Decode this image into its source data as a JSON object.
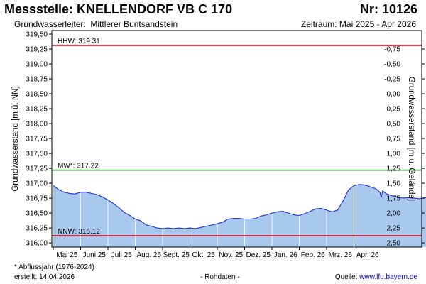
{
  "header": {
    "title": "Messstelle: KNELLENDORF VB C 170",
    "number": "Nr: 10126",
    "aquifer_label": "Grundwasserleiter:",
    "aquifer_value": "Mittlerer Buntsandstein",
    "period": "Zeitraum: Mai 2025 - Apr 2026"
  },
  "footer": {
    "footnote": "* Abflussjahr (1976-2024)",
    "created": "erstellt:  14.04.2026",
    "raw": "- Rohdaten -",
    "source_label": "Quelle:",
    "source_link": "www.lfu.bayern.de"
  },
  "chart_data": {
    "type": "area",
    "ylabel": "Grundwasserstand [m ü. NN]",
    "y2label": "Grundwasserstand [m u. Gelände]",
    "ylim": [
      315.93,
      319.56
    ],
    "y_ticks": [
      316.0,
      316.25,
      316.5,
      316.75,
      317.0,
      317.25,
      317.5,
      317.75,
      318.0,
      318.25,
      318.5,
      318.75,
      319.0,
      319.25,
      319.5
    ],
    "y_tick_labels": [
      "316,00",
      "316,25",
      "316,50",
      "316,75",
      "317,00",
      "317,25",
      "317,50",
      "317,75",
      "318,00",
      "318,25",
      "318,50",
      "318,75",
      "319,00",
      "319,25",
      "319,50"
    ],
    "y2_ticks": [
      -0.75,
      -0.5,
      -0.25,
      0.0,
      0.25,
      0.5,
      0.75,
      1.0,
      1.25,
      1.5,
      1.75,
      2.0,
      2.25,
      2.5
    ],
    "y2_tick_labels": [
      "-0,75",
      "-0,50",
      "-0,25",
      "0,00",
      "0,25",
      "0,50",
      "0,75",
      "1,00",
      "1,25",
      "1,50",
      "1,75",
      "2,00",
      "2,25",
      "2,50"
    ],
    "y2_ref_level": 318.5,
    "x_ticks": [
      "Mai 25",
      "Juni 25",
      "Juli 25",
      "Aug. 25",
      "Sept. 25",
      "Okt. 25",
      "Nov. 25",
      "Dez. 25",
      "Jan. 26",
      "Feb. 26",
      "Mrz. 26",
      "Apr. 26"
    ],
    "grid": true,
    "reference_lines": [
      {
        "label": "HHW: 319.31",
        "value": 319.31,
        "color": "#e00000"
      },
      {
        "label": "MW*: 317.22",
        "value": 317.22,
        "color": "#008000"
      },
      {
        "label": "NNW: 316.12",
        "value": 316.12,
        "color": "#e00000"
      }
    ],
    "series": [
      {
        "color": "#1d2fd0",
        "fill": "#a9c8ee",
        "points": [
          [
            0.0,
            316.96
          ],
          [
            0.1,
            316.93
          ],
          [
            0.2,
            316.89
          ],
          [
            0.3,
            316.87
          ],
          [
            0.4,
            316.85
          ],
          [
            0.5,
            316.84
          ],
          [
            0.6,
            316.83
          ],
          [
            0.8,
            316.82
          ],
          [
            1.0,
            316.85
          ],
          [
            1.2,
            316.85
          ],
          [
            1.4,
            316.83
          ],
          [
            1.6,
            316.81
          ],
          [
            1.8,
            316.77
          ],
          [
            2.0,
            316.72
          ],
          [
            2.2,
            316.66
          ],
          [
            2.4,
            316.59
          ],
          [
            2.6,
            316.51
          ],
          [
            2.8,
            316.46
          ],
          [
            3.0,
            316.4
          ],
          [
            3.2,
            316.37
          ],
          [
            3.4,
            316.3
          ],
          [
            3.6,
            316.28
          ],
          [
            3.8,
            316.25
          ],
          [
            4.0,
            316.24
          ],
          [
            4.2,
            316.25
          ],
          [
            4.4,
            316.24
          ],
          [
            4.6,
            316.25
          ],
          [
            4.8,
            316.24
          ],
          [
            5.0,
            316.25
          ],
          [
            5.2,
            316.24
          ],
          [
            5.4,
            316.26
          ],
          [
            5.6,
            316.28
          ],
          [
            5.8,
            316.3
          ],
          [
            6.0,
            316.32
          ],
          [
            6.2,
            316.35
          ],
          [
            6.4,
            316.4
          ],
          [
            6.6,
            316.41
          ],
          [
            6.8,
            316.41
          ],
          [
            7.0,
            316.4
          ],
          [
            7.2,
            316.4
          ],
          [
            7.4,
            316.41
          ],
          [
            7.6,
            316.45
          ],
          [
            7.8,
            316.47
          ],
          [
            8.0,
            316.5
          ],
          [
            8.2,
            316.52
          ],
          [
            8.4,
            316.53
          ],
          [
            8.6,
            316.5
          ],
          [
            8.8,
            316.47
          ],
          [
            9.0,
            316.46
          ],
          [
            9.2,
            316.49
          ],
          [
            9.4,
            316.53
          ],
          [
            9.6,
            316.57
          ],
          [
            9.8,
            316.58
          ],
          [
            10.0,
            316.55
          ],
          [
            10.2,
            316.52
          ],
          [
            10.4,
            316.55
          ],
          [
            10.6,
            316.7
          ],
          [
            10.8,
            316.89
          ],
          [
            11.0,
            316.96
          ],
          [
            11.2,
            316.98
          ],
          [
            11.4,
            316.97
          ],
          [
            11.6,
            316.94
          ],
          [
            11.8,
            316.91
          ],
          [
            11.95,
            316.85
          ],
          [
            12.0,
            316.76
          ],
          [
            12.05,
            316.87
          ],
          [
            12.2,
            316.82
          ],
          [
            12.4,
            316.79
          ],
          [
            12.6,
            316.77
          ],
          [
            12.8,
            316.75
          ],
          [
            13.0,
            316.76
          ],
          [
            13.2,
            316.75
          ],
          [
            13.4,
            316.74
          ],
          [
            13.6,
            316.76
          ],
          [
            13.8,
            316.75
          ]
        ]
      }
    ]
  }
}
